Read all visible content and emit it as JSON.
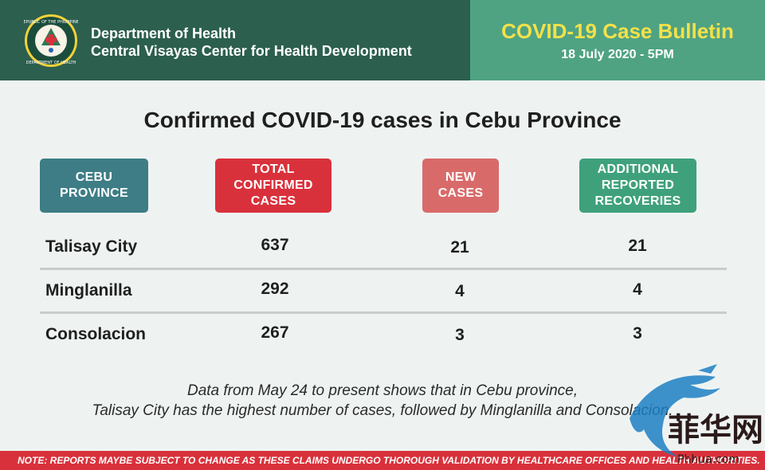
{
  "header": {
    "org_name": "Department of Health",
    "org_sub": "Central Visayas Center for Health Development",
    "seal_text": "REPUBLIC OF THE PHILIPPINES • DEPARTMENT OF HEALTH •",
    "bulletin_title": "COVID-19 Case Bulletin",
    "bulletin_date": "18 July 2020 - 5PM"
  },
  "title": "Confirmed COVID-19 cases in Cebu Province",
  "columns": {
    "province": [
      "CEBU",
      "PROVINCE"
    ],
    "total": [
      "TOTAL",
      "CONFIRMED",
      "CASES"
    ],
    "new": [
      "NEW",
      "CASES"
    ],
    "recoveries": [
      "ADDITIONAL",
      "REPORTED",
      "RECOVERIES"
    ]
  },
  "rows": [
    {
      "name": "Talisay City",
      "total": "637",
      "new": "21",
      "recoveries": "21"
    },
    {
      "name": "Minglanilla",
      "total": "292",
      "new": "4",
      "recoveries": "4"
    },
    {
      "name": "Consolacion",
      "total": "267",
      "new": "3",
      "recoveries": "3"
    }
  ],
  "footnote": {
    "line1": "Data from May 24 to present shows that in Cebu province,",
    "line2": "Talisay City has the highest number of cases, followed by Minglanilla and Consolacion."
  },
  "note": "NOTE:  REPORTS MAYBE SUBJECT TO CHANGE AS THESE CLAIMS UNDERGO THOROUGH VALIDATION BY HEALTHCARE OFFICES AND HEALTH AUTHORITIES.",
  "watermark": {
    "glyphs": "菲华网",
    "site": "Phhua.com"
  },
  "colors": {
    "header_dark": "#2c5f4e",
    "header_light": "#4fa383",
    "title_yellow": "#f3e14a",
    "province_teal": "#3e7d86",
    "total_red": "#d9313b",
    "new_pink": "#d96a6a",
    "recov_green": "#3fa17c"
  }
}
